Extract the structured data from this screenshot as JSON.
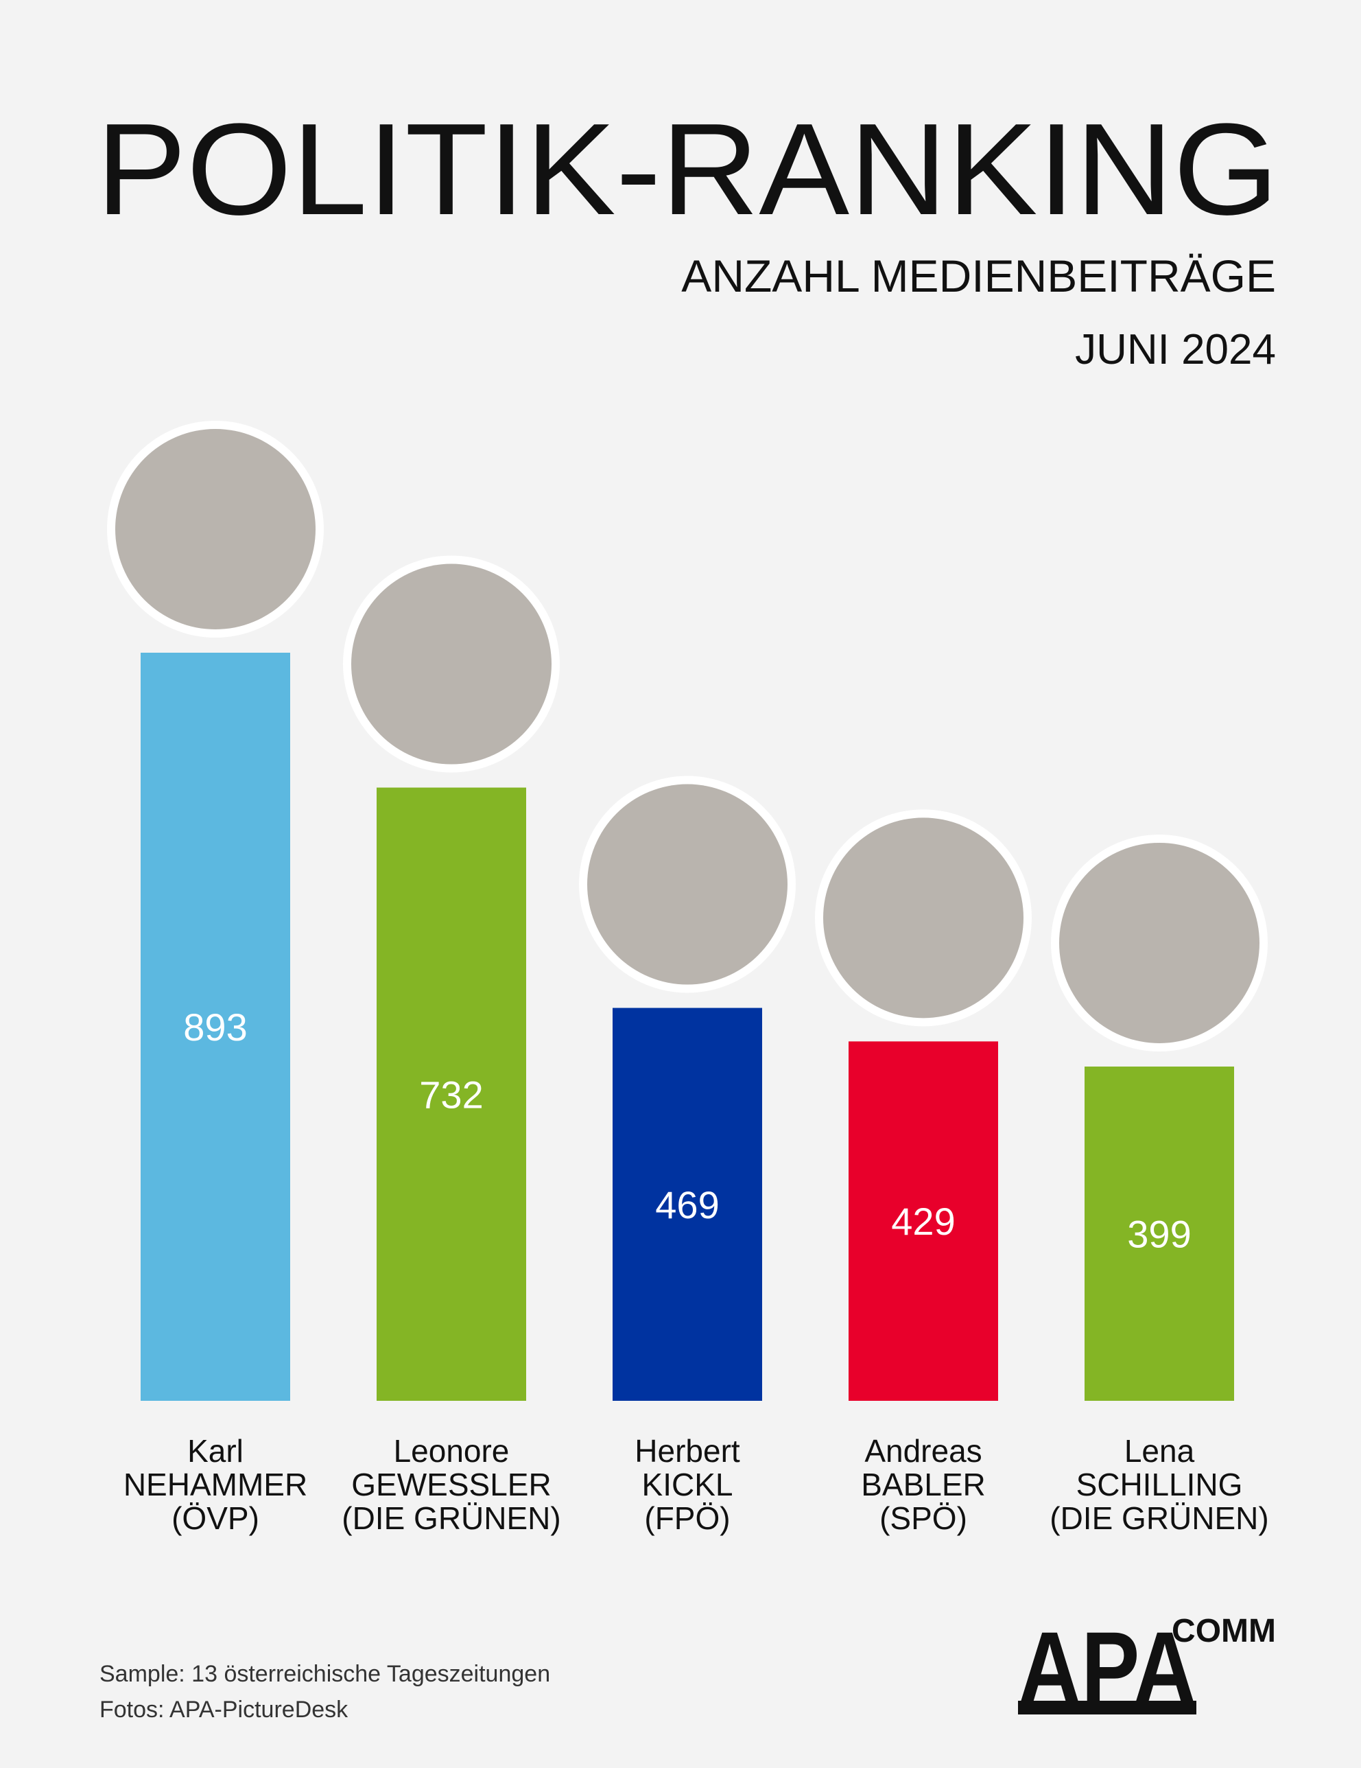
{
  "chart_data": {
    "type": "bar",
    "title": "POLITIK-RANKING",
    "subtitle": "ANZAHL MEDIENBEITRÄGE",
    "period": "JUNI 2024",
    "categories": [
      [
        "Karl",
        "NEHAMMER",
        "(ÖVP)"
      ],
      [
        "Leonore",
        "GEWESSLER",
        "(DIE GRÜNEN)"
      ],
      [
        "Herbert",
        "KICKL",
        "(FPÖ)"
      ],
      [
        "Andreas",
        "BABLER",
        "(SPÖ)"
      ],
      [
        "Lena",
        "SCHILLING",
        "(DIE GRÜNEN)"
      ]
    ],
    "values": [
      893,
      732,
      469,
      429,
      399
    ],
    "colors": [
      "#5cb8e0",
      "#84b525",
      "#0033a0",
      "#e8002b",
      "#84b525"
    ],
    "notes": [
      "Sample: 13 österreichische Tageszeitungen",
      "Fotos: APA-PictureDesk"
    ],
    "logo": {
      "main": "APA",
      "sub": "COMM"
    }
  }
}
